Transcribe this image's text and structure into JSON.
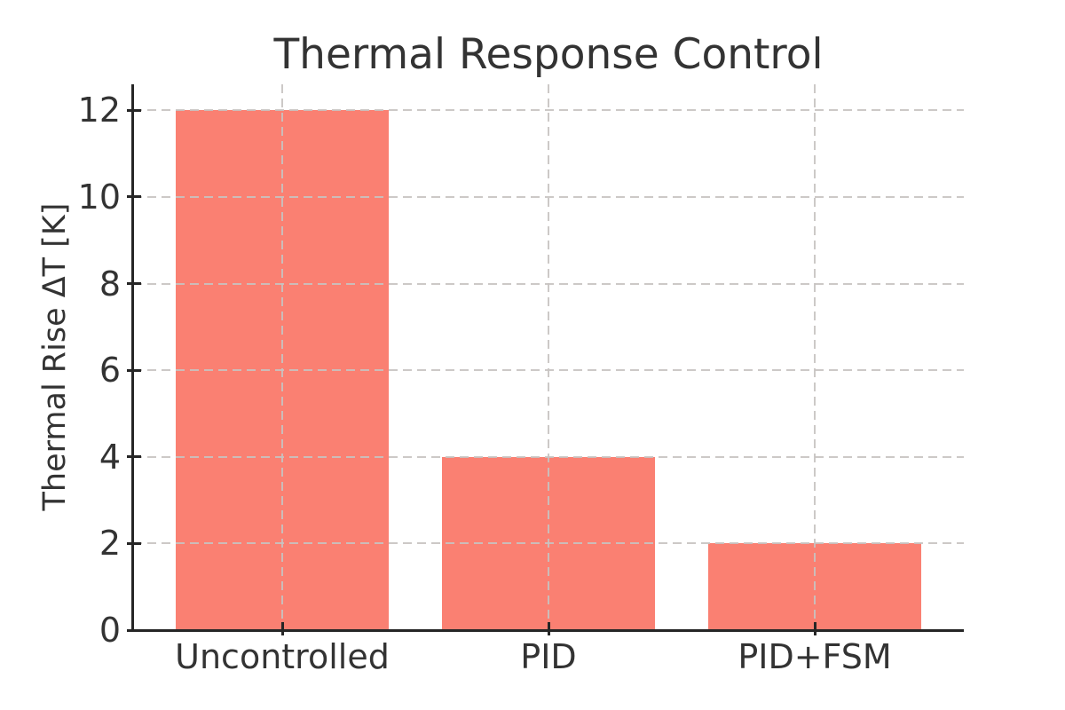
{
  "chart_data": {
    "type": "bar",
    "title": "Thermal Response Control",
    "xlabel": "",
    "ylabel": "Thermal Rise ΔT [K]",
    "categories": [
      "Uncontrolled",
      "PID",
      "PID+FSM"
    ],
    "values": [
      12,
      4,
      2
    ],
    "yticks": [
      0,
      2,
      4,
      6,
      8,
      10,
      12
    ],
    "ylim": [
      0,
      12.6
    ],
    "bar_width_fraction": 0.8,
    "legend": "none",
    "grid": {
      "visible": true,
      "style": "dashed",
      "axes": "both",
      "drawn_above_bars": true
    },
    "spines": [
      "left",
      "bottom"
    ],
    "colors": {
      "bar": "#FA8072",
      "grid": "#c7c3c1",
      "spine": "#262626",
      "tick": "#262626",
      "text": "#333333",
      "background": "#ffffff"
    }
  }
}
